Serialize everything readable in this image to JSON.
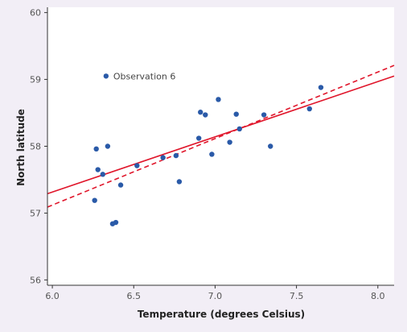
{
  "chart_data": {
    "type": "scatter",
    "xlabel": "Temperature (degrees Celsius)",
    "ylabel": "North latitude",
    "xlim": [
      5.97,
      8.1
    ],
    "ylim": [
      55.92,
      60.08
    ],
    "x_ticks": [
      6.0,
      6.5,
      7.0,
      7.5,
      8.0
    ],
    "x_tick_labels": [
      "6.0",
      "6.5",
      "7.0",
      "7.5",
      "8.0"
    ],
    "y_ticks": [
      56,
      57,
      58,
      59,
      60
    ],
    "y_tick_labels": [
      "56",
      "57",
      "58",
      "59",
      "60"
    ],
    "grid": false,
    "colors": {
      "points": "#2a5aa8",
      "lines": "#e0162b",
      "background": "#f2eef6",
      "plot_area": "#ffffff"
    },
    "points": [
      {
        "x": 6.26,
        "y": 57.19
      },
      {
        "x": 6.27,
        "y": 57.96
      },
      {
        "x": 6.28,
        "y": 57.65
      },
      {
        "x": 6.31,
        "y": 57.58
      },
      {
        "x": 6.33,
        "y": 59.05
      },
      {
        "x": 6.34,
        "y": 58.0
      },
      {
        "x": 6.37,
        "y": 56.84
      },
      {
        "x": 6.39,
        "y": 56.86
      },
      {
        "x": 6.42,
        "y": 57.42
      },
      {
        "x": 6.52,
        "y": 57.71
      },
      {
        "x": 6.68,
        "y": 57.83
      },
      {
        "x": 6.76,
        "y": 57.86
      },
      {
        "x": 6.78,
        "y": 57.47
      },
      {
        "x": 6.9,
        "y": 58.12
      },
      {
        "x": 6.91,
        "y": 58.51
      },
      {
        "x": 6.94,
        "y": 58.47
      },
      {
        "x": 6.98,
        "y": 57.88
      },
      {
        "x": 7.02,
        "y": 58.7
      },
      {
        "x": 7.09,
        "y": 58.06
      },
      {
        "x": 7.13,
        "y": 58.48
      },
      {
        "x": 7.15,
        "y": 58.26
      },
      {
        "x": 7.3,
        "y": 58.47
      },
      {
        "x": 7.34,
        "y": 58.0
      },
      {
        "x": 7.58,
        "y": 58.56
      },
      {
        "x": 7.65,
        "y": 58.88
      }
    ],
    "annotations": [
      {
        "label": "Observation 6",
        "x": 6.33,
        "y": 59.05
      }
    ],
    "lines": [
      {
        "style": "solid",
        "x": [
          5.97,
          8.1
        ],
        "y": [
          57.29,
          59.05
        ]
      },
      {
        "style": "dashed",
        "x": [
          5.97,
          8.1
        ],
        "y": [
          57.09,
          59.21
        ]
      }
    ]
  }
}
